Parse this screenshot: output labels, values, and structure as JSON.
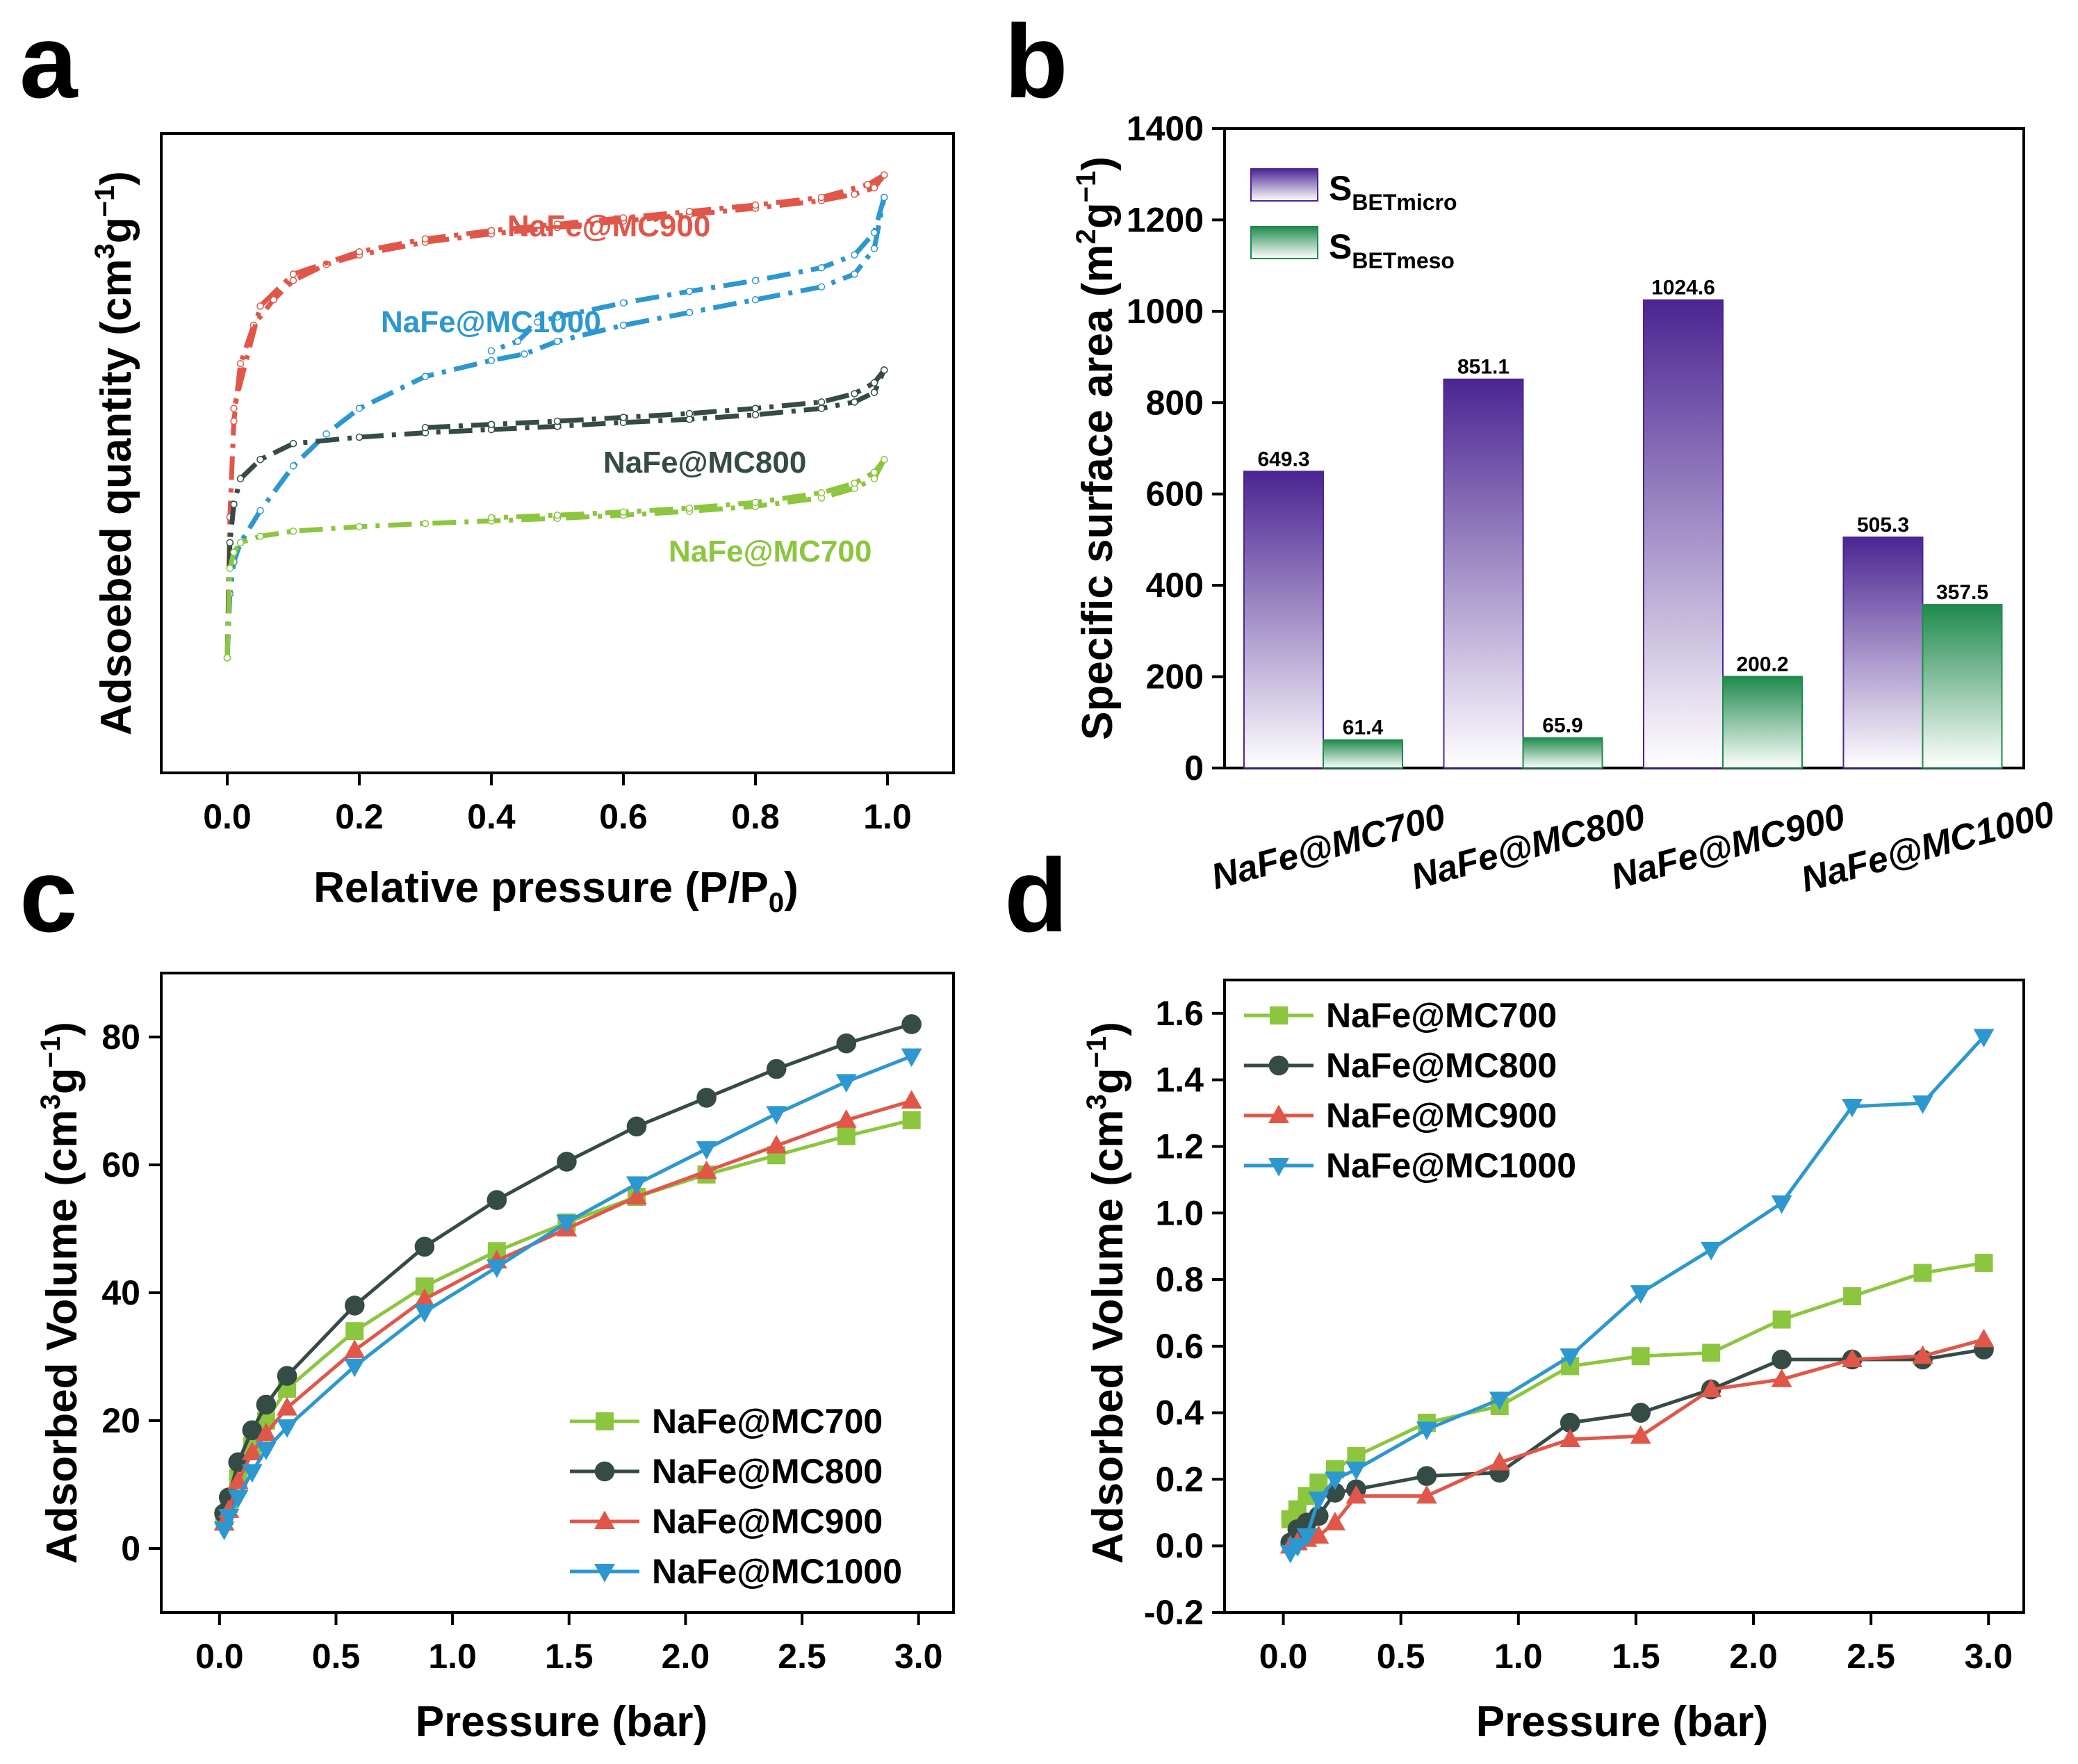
{
  "chart_data": [
    {
      "panel": "a",
      "type": "line",
      "title": "",
      "xlabel": "Relative pressure (P/P0)",
      "xlabel_main": "Relative pressure (P/P",
      "xlabel_sub": "0",
      "xlabel_tail": ")",
      "ylabel": "Adsoebed quantity (cm3g−1)",
      "ylabel_main": "Adsoebed quantity (cm",
      "ylabel_sup1": "3",
      "ylabel_mid": "g",
      "ylabel_sup2": "−1",
      "ylabel_tail": ")",
      "xlim": [
        -0.1,
        1.1
      ],
      "ylim": [
        0,
        100
      ],
      "xticks": [
        "0.0",
        "0.2",
        "0.4",
        "0.6",
        "0.8",
        "1.0"
      ],
      "y_ticks_labeled": false,
      "series": [
        {
          "name": "NaFe@MC900",
          "color": "#e0574a",
          "adsorption": [
            [
              0,
              18
            ],
            [
              0.004,
              40
            ],
            [
              0.01,
              55
            ],
            [
              0.02,
              64
            ],
            [
              0.04,
              70
            ],
            [
              0.07,
              74
            ],
            [
              0.1,
              77
            ],
            [
              0.15,
              79.5
            ],
            [
              0.2,
              81
            ],
            [
              0.3,
              83
            ],
            [
              0.4,
              84.3
            ],
            [
              0.5,
              85.3
            ],
            [
              0.6,
              86.3
            ],
            [
              0.7,
              87.3
            ],
            [
              0.8,
              88.3
            ],
            [
              0.9,
              89.5
            ],
            [
              0.95,
              90.5
            ],
            [
              0.98,
              91.5
            ],
            [
              0.995,
              93.5
            ]
          ],
          "desorption": [
            [
              0.995,
              93.5
            ],
            [
              0.97,
              92
            ],
            [
              0.9,
              90
            ],
            [
              0.8,
              88.8
            ],
            [
              0.7,
              87.8
            ],
            [
              0.6,
              86.8
            ],
            [
              0.5,
              85.8
            ],
            [
              0.4,
              84.8
            ],
            [
              0.3,
              83.5
            ],
            [
              0.2,
              81.5
            ],
            [
              0.1,
              78
            ],
            [
              0.05,
              73
            ],
            [
              0.01,
              57
            ]
          ]
        },
        {
          "name": "NaFe@MC1000",
          "color": "#2d97cf",
          "adsorption": [
            [
              0,
              18
            ],
            [
              0.004,
              28
            ],
            [
              0.01,
              33
            ],
            [
              0.02,
              36
            ],
            [
              0.05,
              41
            ],
            [
              0.1,
              48
            ],
            [
              0.15,
              53
            ],
            [
              0.2,
              57
            ],
            [
              0.3,
              62
            ],
            [
              0.4,
              64.5
            ],
            [
              0.45,
              65.5
            ],
            [
              0.5,
              67.5
            ],
            [
              0.6,
              70
            ],
            [
              0.7,
              72
            ],
            [
              0.8,
              74
            ],
            [
              0.9,
              76
            ],
            [
              0.95,
              78
            ],
            [
              0.98,
              82
            ],
            [
              0.995,
              90
            ]
          ],
          "desorption": [
            [
              0.995,
              90
            ],
            [
              0.98,
              84.5
            ],
            [
              0.95,
              81
            ],
            [
              0.9,
              79
            ],
            [
              0.8,
              77
            ],
            [
              0.7,
              75.3
            ],
            [
              0.6,
              73.5
            ],
            [
              0.5,
              71.3
            ],
            [
              0.47,
              70.5
            ],
            [
              0.44,
              67.5
            ],
            [
              0.4,
              66
            ]
          ]
        },
        {
          "name": "NaFe@MC800",
          "color": "#354b45",
          "adsorption": [
            [
              0,
              18
            ],
            [
              0.004,
              36
            ],
            [
              0.01,
              42
            ],
            [
              0.02,
              46
            ],
            [
              0.05,
              49
            ],
            [
              0.1,
              51.5
            ],
            [
              0.2,
              52.5
            ],
            [
              0.3,
              53.2
            ],
            [
              0.4,
              53.7
            ],
            [
              0.5,
              54.2
            ],
            [
              0.6,
              54.8
            ],
            [
              0.7,
              55.3
            ],
            [
              0.8,
              56
            ],
            [
              0.9,
              57
            ],
            [
              0.95,
              58
            ],
            [
              0.98,
              59.5
            ],
            [
              0.995,
              63
            ]
          ],
          "desorption": [
            [
              0.995,
              63
            ],
            [
              0.98,
              61
            ],
            [
              0.95,
              59.3
            ],
            [
              0.9,
              58
            ],
            [
              0.8,
              57
            ],
            [
              0.7,
              56.2
            ],
            [
              0.6,
              55.6
            ],
            [
              0.5,
              55
            ],
            [
              0.4,
              54.5
            ],
            [
              0.3,
              54
            ]
          ]
        },
        {
          "name": "NaFe@MC700",
          "color": "#8cc63f",
          "adsorption": [
            [
              0,
              18
            ],
            [
              0.004,
              32
            ],
            [
              0.01,
              34.5
            ],
            [
              0.02,
              36
            ],
            [
              0.05,
              37
            ],
            [
              0.1,
              37.8
            ],
            [
              0.2,
              38.5
            ],
            [
              0.3,
              39
            ],
            [
              0.4,
              39.4
            ],
            [
              0.5,
              39.8
            ],
            [
              0.6,
              40.3
            ],
            [
              0.7,
              40.9
            ],
            [
              0.8,
              41.7
            ],
            [
              0.9,
              43
            ],
            [
              0.95,
              44.5
            ],
            [
              0.98,
              46
            ],
            [
              0.995,
              49
            ]
          ],
          "desorption": [
            [
              0.995,
              49
            ],
            [
              0.98,
              47
            ],
            [
              0.95,
              45.3
            ],
            [
              0.9,
              43.8
            ],
            [
              0.8,
              42.3
            ],
            [
              0.7,
              41.4
            ],
            [
              0.6,
              40.8
            ],
            [
              0.5,
              40.3
            ],
            [
              0.4,
              39.9
            ]
          ]
        }
      ]
    },
    {
      "panel": "b",
      "type": "bar",
      "title": "",
      "xlabel": "",
      "ylabel": "Specific surface area (m2g−1)",
      "ylabel_main": "Specific surface area (m",
      "ylabel_sup1": "2",
      "ylabel_mid": "g",
      "ylabel_sup2": "−1",
      "ylabel_tail": ")",
      "ylim": [
        0,
        1400
      ],
      "yticks": [
        0,
        200,
        400,
        600,
        800,
        1000,
        1200,
        1400
      ],
      "categories": [
        "NaFe@MC700",
        "NaFe@MC800",
        "NaFe@MC900",
        "NaFe@MC1000"
      ],
      "series": [
        {
          "name": "SBETmicro",
          "legend_main": "S",
          "legend_sub": "BETmicro",
          "color": "#4b2592",
          "values": [
            649.3,
            851.1,
            1024.6,
            505.3
          ],
          "labels": [
            "649.3",
            "851.1",
            "1024.6",
            "505.3"
          ]
        },
        {
          "name": "SBETmeso",
          "legend_main": "S",
          "legend_sub": "BETmeso",
          "color": "#1f8a4c",
          "values": [
            61.4,
            65.9,
            200.2,
            357.5
          ],
          "labels": [
            "61.4",
            "65.9",
            "200.2",
            "357.5"
          ]
        }
      ],
      "legend": "top-left"
    },
    {
      "panel": "c",
      "type": "line",
      "title": "",
      "xlabel": "Pressure (bar)",
      "ylabel": "Adsorbed Volume (cm3g−1)",
      "ylabel_main": "Adsorbed Volume (cm",
      "ylabel_sup1": "3",
      "ylabel_mid": "g",
      "ylabel_sup2": "−1",
      "ylabel_tail": ")",
      "xlim": [
        -0.25,
        3.15
      ],
      "ylim": [
        -10,
        90
      ],
      "xticks": [
        "0.0",
        "0.5",
        "1.0",
        "1.5",
        "2.0",
        "2.5",
        "3.0"
      ],
      "yticks": [
        "0",
        "20",
        "40",
        "60",
        "80"
      ],
      "legend": "bottom-right",
      "series": [
        {
          "name": "NaFe@MC700",
          "color": "#8cc63f",
          "marker": "square",
          "x": [
            0.02,
            0.04,
            0.08,
            0.14,
            0.2,
            0.29,
            0.58,
            0.88,
            1.19,
            1.49,
            1.79,
            2.09,
            2.39,
            2.69,
            2.97
          ],
          "y": [
            5,
            7,
            11,
            16,
            20,
            25,
            34,
            41,
            46.5,
            51,
            55,
            58.5,
            61.5,
            64.5,
            67
          ]
        },
        {
          "name": "NaFe@MC800",
          "color": "#354b45",
          "marker": "circle",
          "x": [
            0.02,
            0.04,
            0.08,
            0.14,
            0.2,
            0.29,
            0.58,
            0.88,
            1.19,
            1.49,
            1.79,
            2.09,
            2.39,
            2.69,
            2.97
          ],
          "y": [
            5.5,
            8,
            13.5,
            18.5,
            22.5,
            27,
            38,
            47.2,
            54.5,
            60.5,
            66,
            70.5,
            75,
            79,
            82
          ]
        },
        {
          "name": "NaFe@MC900",
          "color": "#e0574a",
          "marker": "triangle-up",
          "x": [
            0.02,
            0.04,
            0.08,
            0.14,
            0.2,
            0.29,
            0.58,
            0.88,
            1.19,
            1.49,
            1.79,
            2.09,
            2.39,
            2.69,
            2.97
          ],
          "y": [
            4,
            6,
            10.5,
            15,
            18,
            22,
            31,
            39,
            45,
            50,
            55,
            59,
            63,
            67,
            70
          ]
        },
        {
          "name": "NaFe@MC1000",
          "color": "#2d97cf",
          "marker": "triangle-down",
          "x": [
            0.02,
            0.04,
            0.08,
            0.14,
            0.2,
            0.29,
            0.58,
            0.88,
            1.19,
            1.49,
            1.79,
            2.09,
            2.39,
            2.69,
            2.97
          ],
          "y": [
            3,
            5,
            8,
            12,
            15.5,
            19,
            28.5,
            37,
            44,
            51,
            57,
            62.5,
            68,
            73,
            77
          ]
        }
      ]
    },
    {
      "panel": "d",
      "type": "line",
      "title": "",
      "xlabel": "Pressure (bar)",
      "ylabel": "Adsorbed Volume (cm3g−1)",
      "ylabel_main": "Adsorbed Volume (cm",
      "ylabel_sup1": "3",
      "ylabel_mid": "g",
      "ylabel_sup2": "−1",
      "ylabel_tail": ")",
      "xlim": [
        -0.25,
        3.15
      ],
      "ylim": [
        -0.2,
        1.7
      ],
      "xticks": [
        "0.0",
        "0.5",
        "1.0",
        "1.5",
        "2.0",
        "2.5",
        "3.0"
      ],
      "yticks": [
        "-0.2",
        "0.0",
        "0.2",
        "0.4",
        "0.6",
        "0.8",
        "1.0",
        "1.2",
        "1.4",
        "1.6"
      ],
      "legend": "top-left",
      "series": [
        {
          "name": "NaFe@MC700",
          "color": "#8cc63f",
          "marker": "square",
          "x": [
            0.03,
            0.06,
            0.1,
            0.15,
            0.22,
            0.31,
            0.61,
            0.92,
            1.22,
            1.52,
            1.82,
            2.12,
            2.42,
            2.72,
            2.98
          ],
          "y": [
            0.08,
            0.11,
            0.15,
            0.19,
            0.23,
            0.27,
            0.37,
            0.42,
            0.54,
            0.57,
            0.58,
            0.68,
            0.75,
            0.82,
            0.85
          ]
        },
        {
          "name": "NaFe@MC800",
          "color": "#354b45",
          "marker": "circle",
          "x": [
            0.03,
            0.06,
            0.1,
            0.15,
            0.22,
            0.31,
            0.61,
            0.92,
            1.22,
            1.52,
            1.82,
            2.12,
            2.42,
            2.72,
            2.98
          ],
          "y": [
            0.01,
            0.05,
            0.07,
            0.09,
            0.16,
            0.17,
            0.21,
            0.22,
            0.37,
            0.4,
            0.47,
            0.56,
            0.56,
            0.56,
            0.59
          ]
        },
        {
          "name": "NaFe@MC900",
          "color": "#e0574a",
          "marker": "triangle-up",
          "x": [
            0.03,
            0.06,
            0.1,
            0.15,
            0.22,
            0.31,
            0.61,
            0.92,
            1.22,
            1.52,
            1.82,
            2.12,
            2.42,
            2.72,
            2.98
          ],
          "y": [
            0.0,
            0.01,
            0.02,
            0.03,
            0.07,
            0.15,
            0.15,
            0.25,
            0.32,
            0.33,
            0.47,
            0.5,
            0.56,
            0.57,
            0.62
          ]
        },
        {
          "name": "NaFe@MC1000",
          "color": "#2d97cf",
          "marker": "triangle-down",
          "x": [
            0.03,
            0.06,
            0.1,
            0.15,
            0.22,
            0.31,
            0.61,
            0.92,
            1.22,
            1.52,
            1.82,
            2.12,
            2.42,
            2.72,
            2.98
          ],
          "y": [
            -0.02,
            0.0,
            0.03,
            0.14,
            0.2,
            0.23,
            0.35,
            0.44,
            0.57,
            0.76,
            0.89,
            1.03,
            1.32,
            1.33,
            1.53
          ]
        }
      ]
    }
  ],
  "panels": {
    "a": "a",
    "b": "b",
    "c": "c",
    "d": "d"
  }
}
